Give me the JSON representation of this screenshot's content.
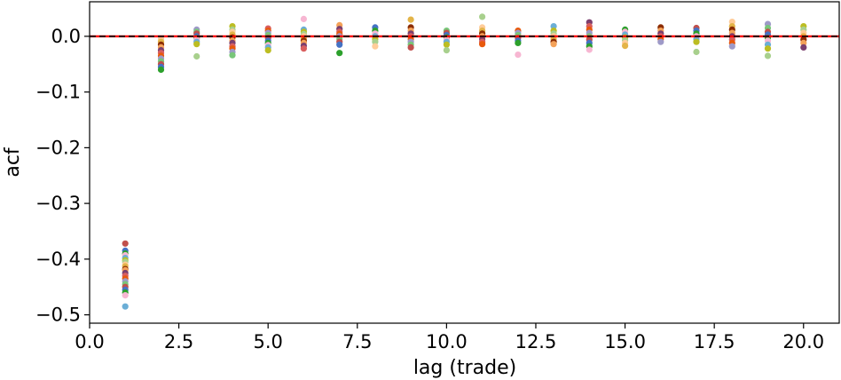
{
  "chart_data": {
    "type": "scatter",
    "xlabel": "lag (trade)",
    "ylabel": "acf",
    "xlim": [
      0,
      21
    ],
    "ylim": [
      -0.515,
      0.062
    ],
    "xticks": [
      0.0,
      2.5,
      5.0,
      7.5,
      10.0,
      12.5,
      15.0,
      17.5,
      20.0
    ],
    "xtick_labels": [
      "0.0",
      "2.5",
      "5.0",
      "7.5",
      "10.0",
      "12.5",
      "15.0",
      "17.5",
      "20.0"
    ],
    "yticks": [
      0.0,
      -0.1,
      -0.2,
      -0.3,
      -0.4,
      -0.5
    ],
    "ytick_labels": [
      "0.0",
      "−0.1",
      "−0.2",
      "−0.3",
      "−0.4",
      "−0.5"
    ],
    "grid": false,
    "reference_lines": [
      {
        "y": 0,
        "color": "#ff0000",
        "style": "solid"
      },
      {
        "y": 0,
        "color": "#000000",
        "style": "dashed"
      }
    ],
    "palette": [
      "#c0504d",
      "#e8590c",
      "#f4a259",
      "#ffcc99",
      "#6baed6",
      "#4472c4",
      "#9e9ac8",
      "#7b3f6e",
      "#e3b448",
      "#bcbd22",
      "#2ca02c",
      "#78c679",
      "#d95f5f",
      "#8c2d04",
      "#a8d08d",
      "#f7b6d2"
    ],
    "series": [
      {
        "x": 1,
        "values": [
          -0.372,
          -0.385,
          -0.39,
          -0.393,
          -0.398,
          -0.402,
          -0.405,
          -0.41,
          -0.413,
          -0.418,
          -0.42,
          -0.425,
          -0.43,
          -0.435,
          -0.44,
          -0.445,
          -0.45,
          -0.455,
          -0.46,
          -0.465,
          -0.485
        ]
      },
      {
        "x": 2,
        "values": [
          -0.005,
          -0.01,
          -0.015,
          -0.02,
          -0.025,
          -0.03,
          -0.035,
          -0.04,
          -0.045,
          -0.05,
          -0.055,
          -0.06
        ]
      },
      {
        "x": 3,
        "values": [
          0.012,
          0.008,
          0.005,
          0.0,
          -0.003,
          -0.006,
          -0.01,
          -0.014,
          -0.036
        ]
      },
      {
        "x": 4,
        "values": [
          0.018,
          0.012,
          0.008,
          0.003,
          -0.002,
          -0.008,
          -0.012,
          -0.018,
          -0.022,
          -0.028,
          -0.034
        ]
      },
      {
        "x": 5,
        "values": [
          0.014,
          0.01,
          0.006,
          0.002,
          -0.003,
          -0.008,
          -0.012,
          -0.016,
          -0.02,
          -0.025
        ]
      },
      {
        "x": 6,
        "values": [
          0.031,
          0.012,
          0.008,
          0.004,
          0.0,
          -0.004,
          -0.008,
          -0.012,
          -0.017,
          -0.022
        ]
      },
      {
        "x": 7,
        "values": [
          0.02,
          0.013,
          0.008,
          0.004,
          0.0,
          -0.005,
          -0.01,
          -0.015,
          -0.03
        ]
      },
      {
        "x": 8,
        "values": [
          0.016,
          0.01,
          0.005,
          0.0,
          -0.005,
          -0.01,
          -0.018
        ]
      },
      {
        "x": 9,
        "values": [
          0.03,
          0.016,
          0.01,
          0.005,
          0.0,
          -0.005,
          -0.01,
          -0.015,
          -0.02
        ]
      },
      {
        "x": 10,
        "values": [
          0.01,
          0.006,
          0.002,
          -0.002,
          -0.006,
          -0.01,
          -0.015,
          -0.025
        ]
      },
      {
        "x": 11,
        "values": [
          0.035,
          0.016,
          0.01,
          0.005,
          0.0,
          -0.005,
          -0.01,
          -0.014
        ]
      },
      {
        "x": 12,
        "values": [
          0.01,
          0.006,
          0.002,
          -0.003,
          -0.008,
          -0.012,
          -0.033
        ]
      },
      {
        "x": 13,
        "values": [
          0.018,
          0.01,
          0.005,
          0.0,
          -0.005,
          -0.01,
          -0.014
        ]
      },
      {
        "x": 14,
        "values": [
          0.025,
          0.018,
          0.012,
          0.006,
          0.0,
          -0.006,
          -0.012,
          -0.018,
          -0.024
        ]
      },
      {
        "x": 15,
        "values": [
          0.012,
          0.008,
          0.003,
          -0.002,
          -0.007,
          -0.012,
          -0.017
        ]
      },
      {
        "x": 16,
        "values": [
          0.016,
          0.01,
          0.005,
          0.0,
          -0.005,
          -0.01
        ]
      },
      {
        "x": 17,
        "values": [
          0.015,
          0.01,
          0.005,
          0.0,
          -0.005,
          -0.01,
          -0.028
        ]
      },
      {
        "x": 18,
        "values": [
          0.026,
          0.018,
          0.012,
          0.006,
          0.0,
          -0.006,
          -0.012,
          -0.018
        ]
      },
      {
        "x": 19,
        "values": [
          0.022,
          0.015,
          0.008,
          0.003,
          -0.003,
          -0.008,
          -0.015,
          -0.022,
          -0.035
        ]
      },
      {
        "x": 20,
        "values": [
          0.018,
          0.012,
          0.006,
          0.0,
          -0.006,
          -0.012,
          -0.02
        ]
      }
    ]
  }
}
